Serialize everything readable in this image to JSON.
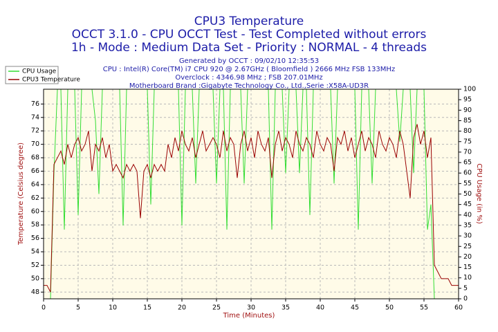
{
  "chart_data": {
    "type": "line",
    "title": "CPU3 Temperature",
    "subtitle": "OCCT 3.1.0 - CPU OCCT Test - Test Completed without errors",
    "subtitle2": "1h - Mode : Medium Data Set - Priority : NORMAL - 4 threads",
    "info": [
      "Generated by OCCT : 09/02/10 12:35:53",
      "CPU : Intel(R) Core(TM) i7 CPU 920 @ 2.67GHz ( Bloomfield ) 2666 MHz FSB 133MHz",
      "Overclock : 4346.98 MHz ; FSB 207.01MHz",
      "Motherboard Brand :Gigabyte Technology Co., Ltd.,Serie :X58A-UD3R"
    ],
    "x_label": "Time (Minutes)",
    "y_label": "Temperature (Celsius degree)",
    "y2_label": "CPU Usage (in %)",
    "x": [
      0,
      0.5,
      1,
      1.5,
      2,
      2.5,
      3,
      3.5,
      4,
      4.5,
      5,
      5.5,
      6,
      6.5,
      7,
      7.5,
      8,
      8.5,
      9,
      9.5,
      10,
      10.5,
      11,
      11.5,
      12,
      12.5,
      13,
      13.5,
      14,
      14.5,
      15,
      15.5,
      16,
      16.5,
      17,
      17.5,
      18,
      18.5,
      19,
      19.5,
      20,
      20.5,
      21,
      21.5,
      22,
      22.5,
      23,
      23.5,
      24,
      24.5,
      25,
      25.5,
      26,
      26.5,
      27,
      27.5,
      28,
      28.5,
      29,
      29.5,
      30,
      30.5,
      31,
      31.5,
      32,
      32.5,
      33,
      33.5,
      34,
      34.5,
      35,
      35.5,
      36,
      36.5,
      37,
      37.5,
      38,
      38.5,
      39,
      39.5,
      40,
      40.5,
      41,
      41.5,
      42,
      42.5,
      43,
      43.5,
      44,
      44.5,
      45,
      45.5,
      46,
      46.5,
      47,
      47.5,
      48,
      48.5,
      49,
      49.5,
      50,
      50.5,
      51,
      51.5,
      52,
      52.5,
      53,
      53.5,
      54,
      54.5,
      55,
      55.5,
      56,
      56.5,
      57,
      57.5,
      58,
      58.5,
      59,
      59.5,
      60
    ],
    "series": [
      {
        "name": "CPU Usage",
        "color": "#33dd33",
        "axis": "y2",
        "values": [
          0,
          0,
          0,
          60,
          100,
          100,
          33,
          100,
          100,
          100,
          40,
          100,
          100,
          100,
          100,
          85,
          50,
          100,
          100,
          100,
          100,
          100,
          100,
          35,
          100,
          100,
          100,
          100,
          100,
          100,
          100,
          45,
          100,
          100,
          100,
          100,
          100,
          100,
          100,
          100,
          35,
          100,
          100,
          100,
          55,
          100,
          100,
          100,
          100,
          100,
          55,
          100,
          100,
          33,
          100,
          100,
          100,
          100,
          55,
          100,
          100,
          100,
          100,
          100,
          100,
          100,
          33,
          100,
          100,
          100,
          60,
          100,
          100,
          100,
          60,
          100,
          100,
          40,
          100,
          100,
          100,
          100,
          100,
          100,
          55,
          100,
          100,
          100,
          100,
          100,
          100,
          33,
          100,
          100,
          100,
          55,
          100,
          100,
          100,
          100,
          100,
          100,
          100,
          75,
          100,
          100,
          100,
          60,
          100,
          100,
          100,
          33,
          45,
          0,
          0,
          0,
          0,
          0,
          0,
          0,
          0
        ]
      },
      {
        "name": "CPU3 Temperature",
        "color": "#990000",
        "values": [
          49,
          49,
          48,
          67,
          68,
          69,
          67,
          70,
          68,
          70,
          71,
          69,
          70,
          72,
          66,
          70,
          69,
          71,
          68,
          70,
          66,
          67,
          66,
          65,
          67,
          66,
          67,
          66,
          59,
          66,
          67,
          65,
          67,
          66,
          67,
          66,
          70,
          68,
          71,
          69,
          72,
          70,
          69,
          71,
          68,
          70,
          72,
          69,
          70,
          71,
          70,
          68,
          72,
          69,
          71,
          70,
          65,
          70,
          72,
          69,
          71,
          68,
          72,
          70,
          69,
          71,
          65,
          70,
          72,
          69,
          71,
          70,
          68,
          72,
          70,
          69,
          71,
          70,
          68,
          72,
          70,
          69,
          71,
          70,
          66,
          71,
          70,
          72,
          69,
          71,
          68,
          70,
          72,
          69,
          71,
          70,
          68,
          72,
          70,
          69,
          71,
          70,
          68,
          72,
          70,
          66,
          62,
          71,
          73,
          70,
          72,
          68,
          71,
          52,
          51,
          50,
          50,
          50,
          49,
          49,
          49
        ]
      }
    ],
    "xlim": [
      0,
      60
    ],
    "xticks": [
      0,
      5,
      10,
      15,
      20,
      25,
      30,
      35,
      40,
      45,
      50,
      55,
      60
    ],
    "ylim": [
      47,
      78.2
    ],
    "yticks": [
      48,
      50,
      52,
      54,
      56,
      58,
      60,
      62,
      64,
      66,
      68,
      70,
      72,
      74,
      76
    ],
    "y2lim": [
      0,
      100
    ],
    "y2ticks": [
      0,
      5,
      10,
      15,
      20,
      25,
      30,
      35,
      40,
      45,
      50,
      55,
      60,
      65,
      70,
      75,
      80,
      85,
      90,
      95,
      100
    ],
    "grid": true,
    "grid_color": "#b8b8b8",
    "legend": "top-left"
  }
}
